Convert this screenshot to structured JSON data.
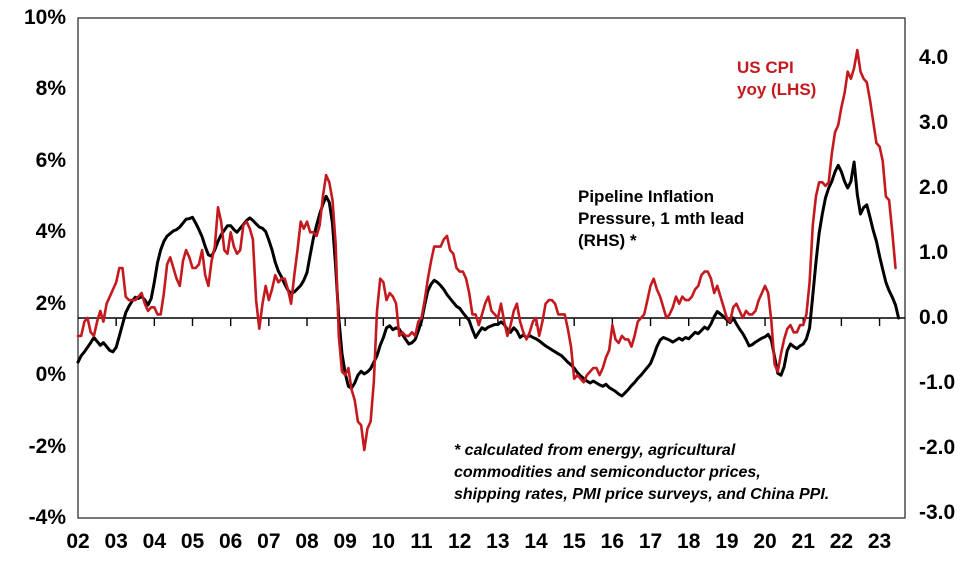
{
  "accent_colors": {
    "cpi_red": "#c41a1f",
    "pipeline_black": "#000000",
    "border_gray": "#3f3f3f"
  },
  "annotations": {
    "cpi_label": {
      "line1": "US CPI",
      "line2": "yoy (LHS)"
    },
    "pipeline_label": {
      "line1": "Pipeline Inflation",
      "line2": "Pressure, 1 mth lead",
      "line3": "(RHS) *"
    },
    "footnote": {
      "line1": "* calculated from energy, agricultural",
      "line2": "commodities and semiconductor prices,",
      "line3": "shipping rates, PMI price surveys, and China PPI."
    }
  },
  "chart_data": {
    "type": "line",
    "title": "",
    "x_start": "2002-01",
    "x_frequency": "monthly",
    "grid": false,
    "legend_position": "in-plot annotations",
    "x_tick_labels": [
      "02",
      "03",
      "04",
      "05",
      "06",
      "07",
      "08",
      "09",
      "10",
      "11",
      "12",
      "13",
      "14",
      "15",
      "16",
      "17",
      "18",
      "19",
      "20",
      "21",
      "22",
      "23"
    ],
    "left_axis": {
      "min": -4,
      "max": 10,
      "unit": "%",
      "tick_labels": [
        "10%",
        "8%",
        "6%",
        "4%",
        "2%",
        "0%",
        "-2%",
        "-4%"
      ],
      "tick_values": [
        10,
        8,
        6,
        4,
        2,
        0,
        -2,
        -4
      ]
    },
    "right_axis": {
      "min": -3,
      "max": 4,
      "tick_labels": [
        "4.0",
        "3.0",
        "2.0",
        "1.0",
        "0.0",
        "-1.0",
        "-2.0",
        "-3.0"
      ],
      "tick_values": [
        4,
        3,
        2,
        1,
        0,
        -1,
        -2,
        -3
      ],
      "zero_baseline": 0
    },
    "series": [
      {
        "name": "US CPI yoy (LHS)",
        "axis": "left",
        "color": "#c41a1f",
        "values": [
          1.1,
          1.1,
          1.5,
          1.6,
          1.2,
          1.1,
          1.5,
          1.8,
          1.5,
          2.0,
          2.2,
          2.4,
          2.6,
          3.0,
          3.0,
          2.2,
          2.1,
          2.1,
          2.1,
          2.2,
          2.3,
          2.0,
          1.8,
          1.9,
          1.9,
          1.7,
          1.7,
          2.3,
          3.1,
          3.3,
          3.0,
          2.7,
          2.5,
          3.2,
          3.5,
          3.3,
          3.0,
          3.0,
          3.1,
          3.5,
          2.8,
          2.5,
          3.2,
          3.6,
          4.7,
          4.3,
          3.5,
          3.4,
          4.0,
          3.6,
          3.4,
          3.5,
          4.2,
          4.3,
          4.1,
          3.8,
          2.1,
          1.3,
          2.0,
          2.5,
          2.1,
          2.4,
          2.8,
          2.6,
          2.7,
          2.7,
          2.4,
          2.0,
          2.8,
          3.5,
          4.3,
          4.1,
          4.3,
          4.0,
          4.0,
          3.9,
          4.2,
          5.0,
          5.6,
          5.4,
          4.9,
          3.7,
          1.1,
          0.1,
          0.0,
          0.2,
          -0.4,
          -0.7,
          -1.3,
          -1.4,
          -2.1,
          -1.5,
          -1.3,
          -0.2,
          1.8,
          2.7,
          2.6,
          2.1,
          2.3,
          2.2,
          2.0,
          1.1,
          1.2,
          1.1,
          1.1,
          1.2,
          1.1,
          1.5,
          1.6,
          2.1,
          2.7,
          3.2,
          3.6,
          3.6,
          3.6,
          3.8,
          3.9,
          3.5,
          3.4,
          3.0,
          2.9,
          2.9,
          2.7,
          2.3,
          1.7,
          1.7,
          1.4,
          1.7,
          2.0,
          2.2,
          1.8,
          1.7,
          1.6,
          2.0,
          1.5,
          1.1,
          1.4,
          1.8,
          2.0,
          1.5,
          1.2,
          1.0,
          1.2,
          1.5,
          1.6,
          1.1,
          1.5,
          2.0,
          2.1,
          2.1,
          2.0,
          1.7,
          1.7,
          1.7,
          1.3,
          0.8,
          -0.1,
          0.0,
          -0.1,
          -0.2,
          0.0,
          0.1,
          0.2,
          0.2,
          0.0,
          0.2,
          0.5,
          0.7,
          1.4,
          1.0,
          0.9,
          1.1,
          1.0,
          1.0,
          0.8,
          1.1,
          1.5,
          1.6,
          1.7,
          2.1,
          2.5,
          2.7,
          2.4,
          2.2,
          1.9,
          1.6,
          1.7,
          1.9,
          2.2,
          2.0,
          2.2,
          2.1,
          2.1,
          2.2,
          2.4,
          2.5,
          2.8,
          2.9,
          2.9,
          2.7,
          2.3,
          2.5,
          2.2,
          1.9,
          1.6,
          1.5,
          1.9,
          2.0,
          1.8,
          1.6,
          1.8,
          1.7,
          1.7,
          1.8,
          2.1,
          2.3,
          2.5,
          2.3,
          1.5,
          0.3,
          0.1,
          0.6,
          1.0,
          1.3,
          1.4,
          1.2,
          1.2,
          1.4,
          1.4,
          1.7,
          2.6,
          4.2,
          5.0,
          5.4,
          5.4,
          5.3,
          5.4,
          6.2,
          6.8,
          7.0,
          7.5,
          7.9,
          8.5,
          8.3,
          8.6,
          9.1,
          8.5,
          8.3,
          8.2,
          7.7,
          7.1,
          6.5,
          6.4,
          6.0,
          5.0,
          4.9,
          4.0,
          3.0
        ]
      },
      {
        "name": "Pipeline Inflation Pressure, 1 mth lead (RHS) *",
        "axis": "right",
        "color": "#000000",
        "values": [
          -0.68,
          -0.58,
          -0.52,
          -0.45,
          -0.38,
          -0.3,
          -0.36,
          -0.42,
          -0.38,
          -0.44,
          -0.5,
          -0.52,
          -0.45,
          -0.28,
          -0.1,
          0.08,
          0.18,
          0.26,
          0.32,
          0.3,
          0.33,
          0.28,
          0.2,
          0.3,
          0.55,
          0.85,
          1.05,
          1.18,
          1.26,
          1.3,
          1.34,
          1.36,
          1.4,
          1.46,
          1.52,
          1.53,
          1.55,
          1.46,
          1.36,
          1.25,
          1.1,
          0.97,
          0.95,
          1.05,
          1.18,
          1.28,
          1.35,
          1.42,
          1.42,
          1.36,
          1.32,
          1.38,
          1.44,
          1.5,
          1.54,
          1.5,
          1.45,
          1.4,
          1.38,
          1.33,
          1.2,
          1.05,
          0.86,
          0.72,
          0.63,
          0.52,
          0.43,
          0.38,
          0.4,
          0.45,
          0.5,
          0.58,
          0.7,
          0.97,
          1.23,
          1.43,
          1.6,
          1.75,
          1.87,
          1.78,
          1.45,
          0.8,
          0.0,
          -0.55,
          -0.85,
          -1.05,
          -1.08,
          -1.0,
          -0.88,
          -0.82,
          -0.86,
          -0.83,
          -0.78,
          -0.68,
          -0.58,
          -0.42,
          -0.3,
          -0.15,
          -0.12,
          -0.18,
          -0.15,
          -0.17,
          -0.25,
          -0.33,
          -0.4,
          -0.38,
          -0.33,
          -0.2,
          -0.05,
          0.2,
          0.42,
          0.52,
          0.58,
          0.55,
          0.5,
          0.44,
          0.36,
          0.3,
          0.24,
          0.18,
          0.15,
          0.08,
          0.02,
          -0.04,
          -0.18,
          -0.3,
          -0.22,
          -0.15,
          -0.18,
          -0.14,
          -0.12,
          -0.1,
          -0.1,
          -0.06,
          -0.1,
          -0.18,
          -0.22,
          -0.15,
          -0.2,
          -0.3,
          -0.26,
          -0.3,
          -0.27,
          -0.3,
          -0.32,
          -0.35,
          -0.39,
          -0.43,
          -0.46,
          -0.49,
          -0.52,
          -0.55,
          -0.58,
          -0.63,
          -0.68,
          -0.72,
          -0.77,
          -0.84,
          -0.89,
          -0.93,
          -0.97,
          -1.0,
          -0.97,
          -1.0,
          -1.03,
          -1.05,
          -1.02,
          -1.07,
          -1.1,
          -1.13,
          -1.17,
          -1.2,
          -1.15,
          -1.1,
          -1.04,
          -0.99,
          -0.93,
          -0.88,
          -0.82,
          -0.76,
          -0.7,
          -0.58,
          -0.44,
          -0.34,
          -0.3,
          -0.32,
          -0.34,
          -0.37,
          -0.34,
          -0.31,
          -0.34,
          -0.3,
          -0.32,
          -0.27,
          -0.22,
          -0.24,
          -0.19,
          -0.14,
          -0.17,
          -0.09,
          0.02,
          0.1,
          0.06,
          0.02,
          -0.03,
          -0.07,
          0.0,
          -0.09,
          -0.17,
          -0.24,
          -0.33,
          -0.43,
          -0.41,
          -0.37,
          -0.34,
          -0.31,
          -0.29,
          -0.25,
          -0.34,
          -0.6,
          -0.85,
          -0.88,
          -0.75,
          -0.5,
          -0.4,
          -0.44,
          -0.47,
          -0.43,
          -0.4,
          -0.32,
          -0.15,
          0.35,
          0.85,
          1.3,
          1.6,
          1.85,
          2.0,
          2.1,
          2.25,
          2.35,
          2.25,
          2.1,
          2.0,
          2.1,
          2.4,
          1.9,
          1.6,
          1.7,
          1.74,
          1.55,
          1.35,
          1.18,
          0.95,
          0.75,
          0.55,
          0.42,
          0.32,
          0.2,
          0.0
        ]
      }
    ]
  }
}
